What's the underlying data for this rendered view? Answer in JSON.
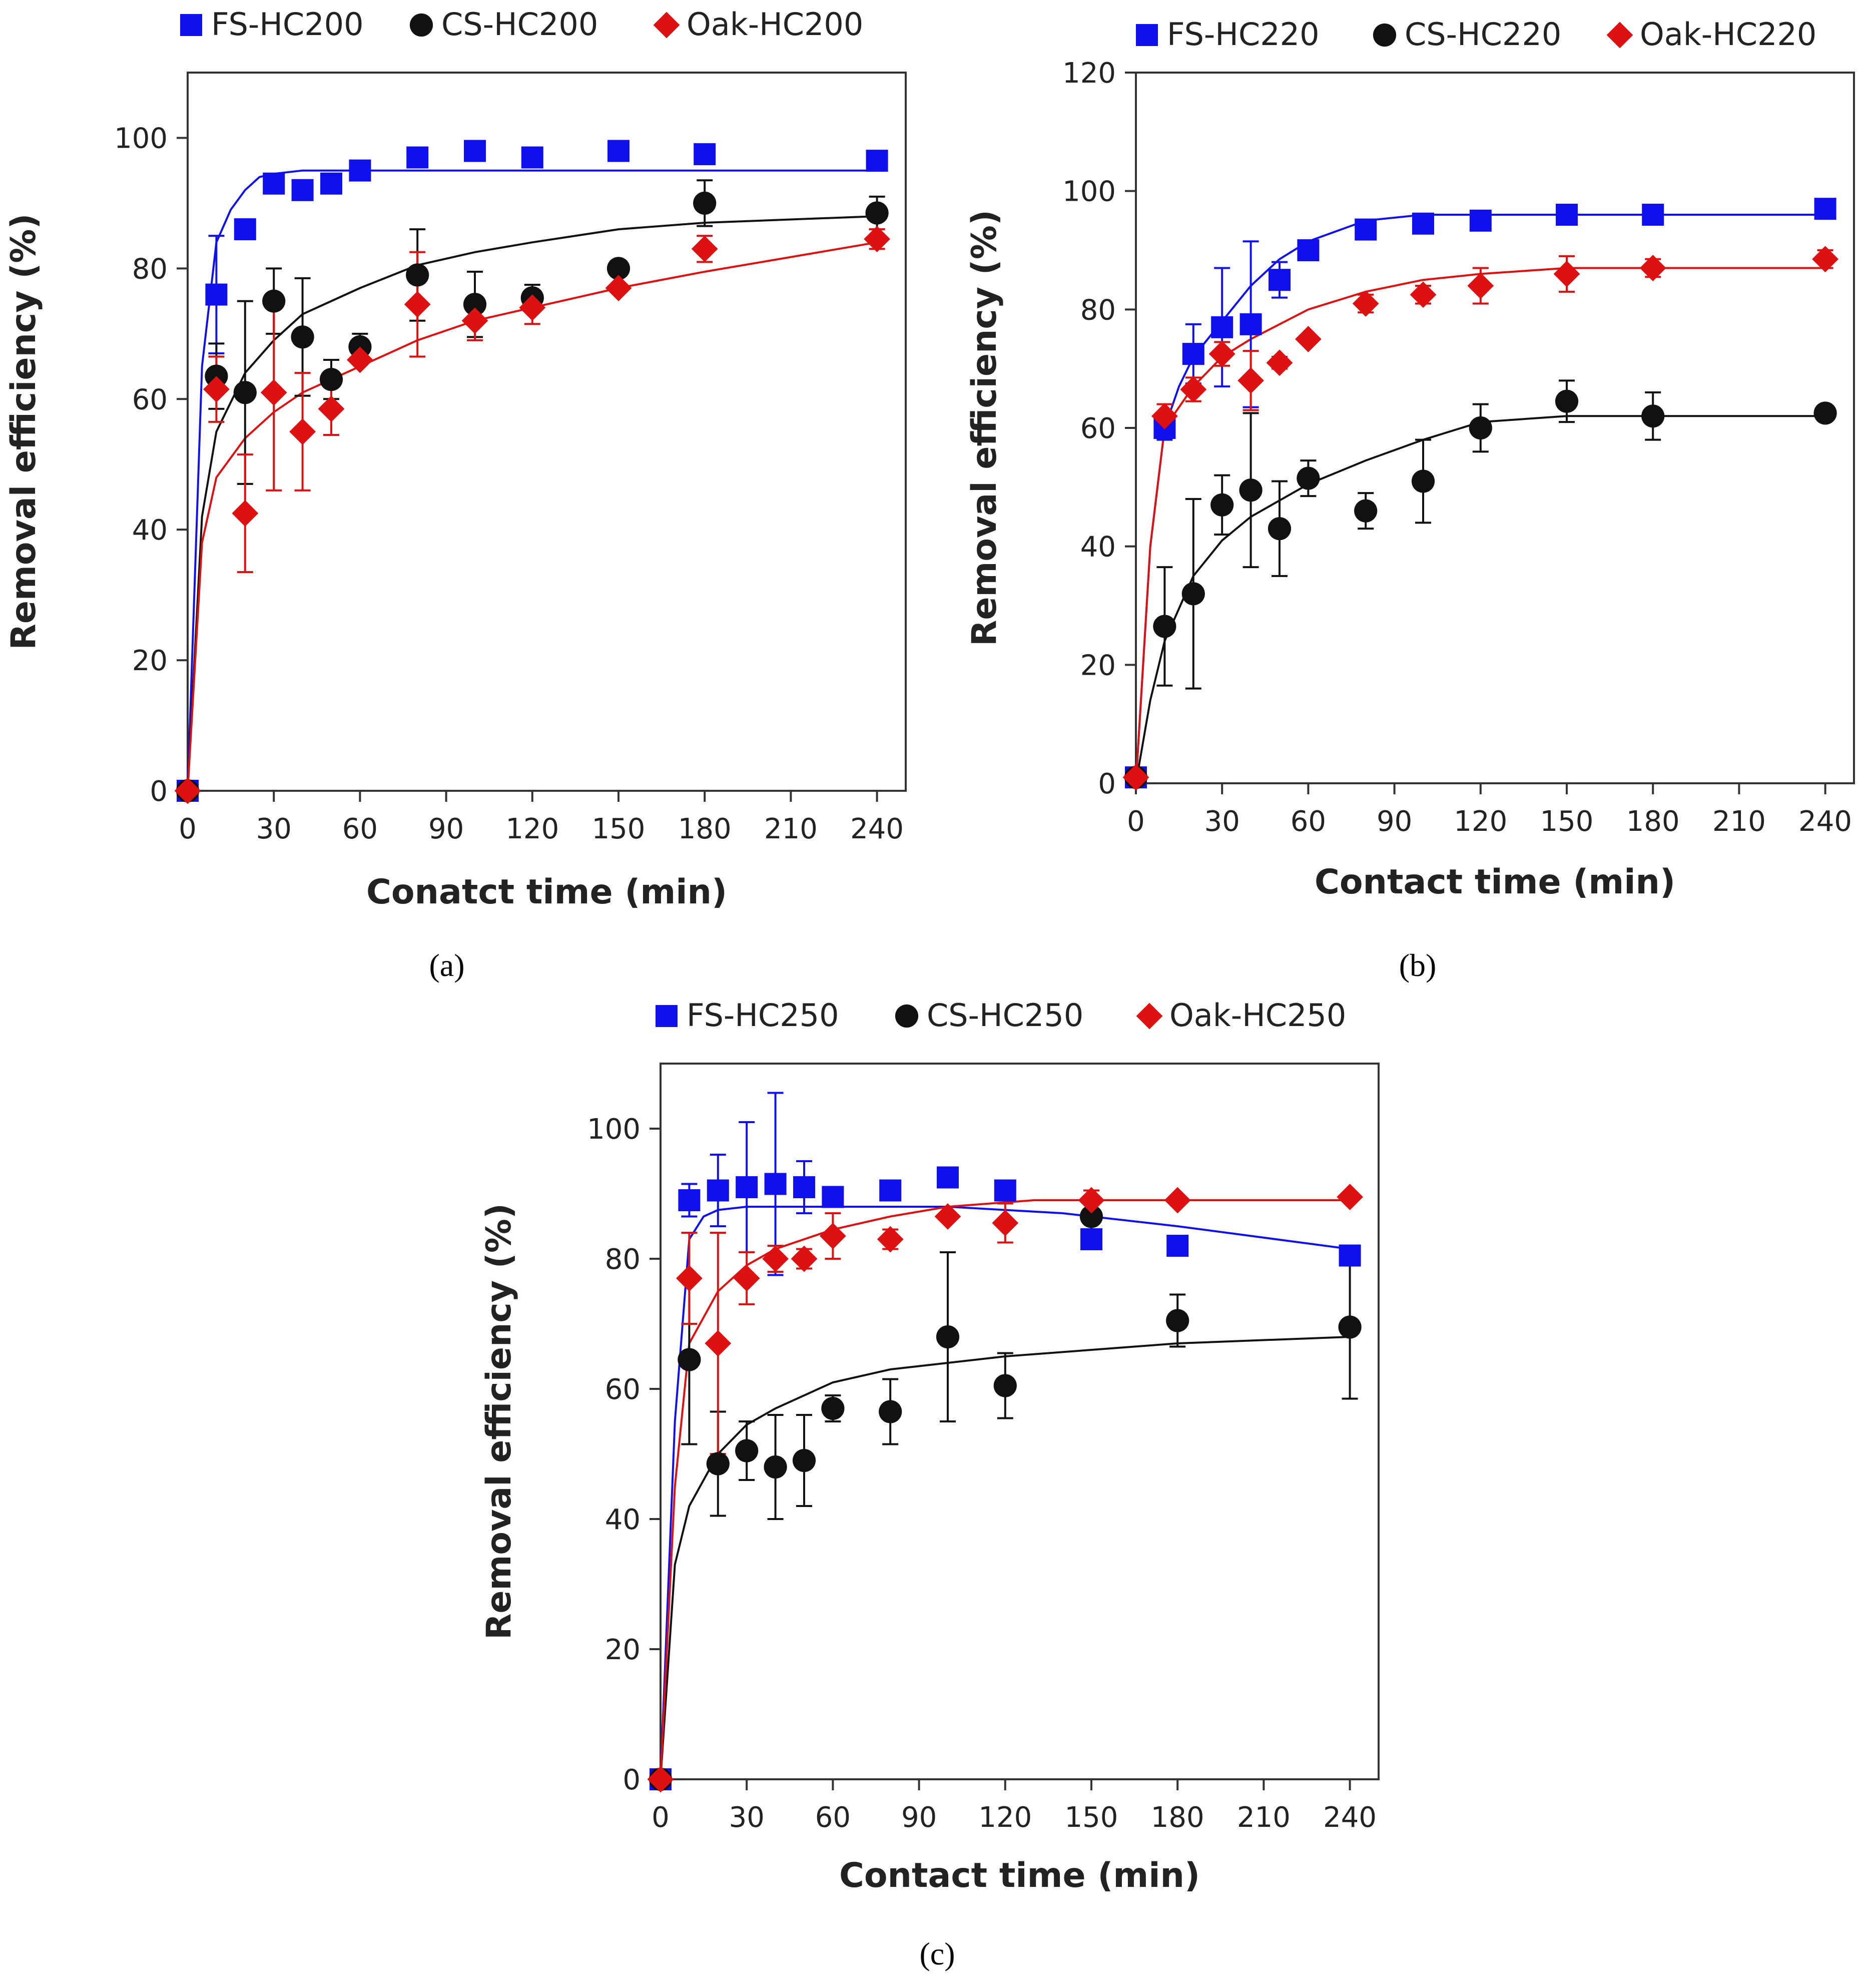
{
  "chart_data": [
    {
      "panel": "a",
      "type": "scatter",
      "xlabel": "Conatct time (min)",
      "ylabel": "Removal efficiency (%)",
      "xlim": [
        0,
        250
      ],
      "ylim": [
        0,
        110
      ],
      "xticks": [
        0,
        30,
        60,
        90,
        120,
        150,
        180,
        210,
        240
      ],
      "yticks": [
        0,
        20,
        40,
        60,
        80,
        100
      ],
      "legend_position": "top",
      "series": [
        {
          "name": "FS-HC200",
          "marker": "square",
          "color": "#1010ee",
          "x": [
            0,
            10,
            20,
            30,
            40,
            50,
            60,
            80,
            100,
            120,
            150,
            180,
            240
          ],
          "y": [
            0,
            76,
            86,
            93,
            92,
            93,
            95,
            97,
            98,
            97,
            98,
            97.5,
            96.5
          ],
          "err": [
            0,
            9,
            0,
            0,
            0,
            0,
            0,
            0,
            0,
            0,
            0,
            0,
            0
          ],
          "fit": {
            "x": [
              0,
              5,
              10,
              15,
              20,
              25,
              30,
              40,
              60,
              100,
              150,
              200,
              240
            ],
            "y": [
              0,
              65,
              84,
              89,
              92,
              94,
              94.5,
              95,
              95,
              95,
              95,
              95,
              95
            ]
          }
        },
        {
          "name": "CS-HC200",
          "marker": "circle",
          "color": "#111111",
          "x": [
            0,
            10,
            20,
            30,
            40,
            50,
            60,
            80,
            100,
            120,
            150,
            180,
            240
          ],
          "y": [
            0,
            63.5,
            61,
            75,
            69.5,
            63,
            68,
            79,
            74.5,
            75.5,
            80,
            90,
            88.5
          ],
          "err": [
            0,
            5,
            14,
            5,
            9,
            3,
            2,
            7,
            5,
            2,
            0,
            3.5,
            2.5
          ],
          "fit": {
            "x": [
              0,
              5,
              10,
              20,
              30,
              40,
              60,
              80,
              100,
              120,
              150,
              180,
              240
            ],
            "y": [
              0,
              42,
              55,
              64,
              69,
              73,
              77,
              80.5,
              82.5,
              84,
              86,
              87,
              88
            ]
          }
        },
        {
          "name": "Oak-HC200",
          "marker": "diamond",
          "color": "#dd1111",
          "x": [
            0,
            10,
            20,
            30,
            40,
            50,
            60,
            80,
            100,
            120,
            150,
            180,
            240
          ],
          "y": [
            0,
            61.5,
            42.5,
            61,
            55,
            58.5,
            66,
            74.5,
            72,
            74,
            77,
            83,
            84.5
          ],
          "err": [
            0,
            5,
            9,
            15,
            9,
            4,
            0,
            8,
            3,
            2.5,
            0,
            2,
            1.5
          ],
          "fit": {
            "x": [
              0,
              5,
              10,
              20,
              30,
              40,
              60,
              80,
              100,
              120,
              150,
              180,
              240
            ],
            "y": [
              0,
              38,
              48,
              54,
              58,
              61,
              65,
              69,
              72,
              74,
              77,
              79.5,
              84
            ]
          }
        }
      ]
    },
    {
      "panel": "b",
      "type": "scatter",
      "xlabel": "Contact time (min)",
      "ylabel": "Removal efficiency (%)",
      "xlim": [
        0,
        250
      ],
      "ylim": [
        0,
        120
      ],
      "xticks": [
        0,
        30,
        60,
        90,
        120,
        150,
        180,
        210,
        240
      ],
      "yticks": [
        0,
        20,
        40,
        60,
        80,
        100,
        120
      ],
      "legend_position": "top",
      "series": [
        {
          "name": "FS-HC220",
          "marker": "square",
          "color": "#1010ee",
          "x": [
            0,
            10,
            20,
            30,
            40,
            50,
            60,
            80,
            100,
            120,
            150,
            180,
            240
          ],
          "y": [
            1,
            60,
            72.5,
            77,
            77.5,
            85,
            90,
            93.5,
            94.5,
            95,
            96,
            96,
            97
          ],
          "err": [
            0,
            2,
            5,
            10,
            14,
            3,
            0,
            0,
            0,
            0,
            0,
            0,
            0
          ],
          "fit": {
            "x": [
              0,
              5,
              10,
              15,
              20,
              30,
              40,
              50,
              60,
              80,
              100,
              120,
              150,
              240
            ],
            "y": [
              0,
              40,
              60,
              67,
              72,
              78,
              84,
              88.5,
              91.5,
              95,
              96,
              96,
              96,
              96
            ]
          }
        },
        {
          "name": "CS-HC220",
          "marker": "circle",
          "color": "#111111",
          "x": [
            0,
            10,
            20,
            30,
            40,
            50,
            60,
            80,
            100,
            120,
            150,
            180,
            240
          ],
          "y": [
            1,
            26.5,
            32,
            47,
            49.5,
            43,
            51.5,
            46,
            51,
            60,
            64.5,
            62,
            62.5
          ],
          "err": [
            0,
            10,
            16,
            5,
            13,
            8,
            3,
            3,
            7,
            4,
            3.5,
            4,
            0
          ],
          "fit": {
            "x": [
              0,
              5,
              10,
              20,
              30,
              40,
              60,
              80,
              100,
              120,
              150,
              180,
              240
            ],
            "y": [
              0,
              14,
              24,
              35,
              41,
              45,
              50.5,
              54.5,
              58,
              61,
              62,
              62,
              62
            ]
          }
        },
        {
          "name": "Oak-HC220",
          "marker": "diamond",
          "color": "#dd1111",
          "x": [
            0,
            10,
            20,
            30,
            40,
            50,
            60,
            80,
            100,
            120,
            150,
            180,
            240
          ],
          "y": [
            1,
            62,
            66.5,
            72.5,
            68,
            71,
            75,
            81,
            82.5,
            84,
            86,
            87,
            88.5
          ],
          "err": [
            0,
            2,
            2,
            2,
            5,
            1,
            0,
            1.5,
            1.5,
            3,
            3,
            1.5,
            1.5
          ],
          "fit": {
            "x": [
              0,
              5,
              10,
              20,
              30,
              40,
              60,
              80,
              100,
              120,
              150,
              240
            ],
            "y": [
              0,
              40,
              60,
              67,
              72,
              75,
              80,
              83,
              85,
              86,
              87,
              87
            ]
          }
        }
      ]
    },
    {
      "panel": "c",
      "type": "scatter",
      "xlabel": "Contact time (min)",
      "ylabel": "Removal efficiency (%)",
      "xlim": [
        0,
        250
      ],
      "ylim": [
        0,
        110
      ],
      "xticks": [
        0,
        30,
        60,
        90,
        120,
        150,
        180,
        210,
        240
      ],
      "yticks": [
        0,
        20,
        40,
        60,
        80,
        100
      ],
      "legend_position": "top",
      "series": [
        {
          "name": "FS-HC250",
          "marker": "square",
          "color": "#1010ee",
          "x": [
            0,
            10,
            20,
            30,
            40,
            50,
            60,
            80,
            100,
            120,
            150,
            180,
            240
          ],
          "y": [
            0,
            89,
            90.5,
            91,
            91.5,
            91,
            89.5,
            90.5,
            92.5,
            90.5,
            83,
            82,
            80.5
          ],
          "err": [
            0,
            2.5,
            5.5,
            10,
            14,
            4,
            0,
            0,
            0,
            0,
            0,
            0,
            0
          ],
          "fit": {
            "x": [
              0,
              5,
              10,
              15,
              20,
              30,
              60,
              100,
              140,
              180,
              240
            ],
            "y": [
              0,
              55,
              83,
              86.5,
              87.5,
              88,
              88,
              88,
              87,
              85,
              81.5
            ]
          }
        },
        {
          "name": "CS-HC250",
          "marker": "circle",
          "color": "#111111",
          "x": [
            0,
            10,
            20,
            30,
            40,
            50,
            60,
            80,
            100,
            120,
            150,
            180,
            240
          ],
          "y": [
            0,
            64.5,
            48.5,
            50.5,
            48,
            49,
            57,
            56.5,
            68,
            60.5,
            86.5,
            70.5,
            69.5
          ],
          "err": [
            0,
            13,
            8,
            4.5,
            8,
            7,
            2,
            5,
            13,
            5,
            3,
            4,
            11
          ],
          "fit": {
            "x": [
              0,
              5,
              10,
              20,
              30,
              40,
              60,
              80,
              100,
              120,
              150,
              180,
              240
            ],
            "y": [
              0,
              33,
              42,
              50,
              54.5,
              57,
              61,
              63,
              64,
              65,
              66,
              67,
              68
            ]
          }
        },
        {
          "name": "Oak-HC250",
          "marker": "diamond",
          "color": "#dd1111",
          "x": [
            0,
            10,
            20,
            30,
            40,
            50,
            60,
            80,
            100,
            120,
            150,
            180,
            240
          ],
          "y": [
            0,
            77,
            67,
            77,
            80,
            80,
            83.5,
            83,
            86.5,
            85.5,
            89,
            89,
            89.5
          ],
          "err": [
            0,
            7,
            17,
            4,
            2,
            1.5,
            3.5,
            1.5,
            0,
            3,
            1.5,
            0,
            0
          ],
          "fit": {
            "x": [
              0,
              5,
              10,
              20,
              30,
              40,
              60,
              80,
              100,
              130,
              160,
              240
            ],
            "y": [
              0,
              45,
              67,
              75,
              79,
              81.5,
              84.5,
              86.5,
              88,
              89,
              89,
              89
            ]
          }
        }
      ]
    }
  ],
  "panel_labels": [
    "(a)",
    "(b)",
    "(c)"
  ]
}
